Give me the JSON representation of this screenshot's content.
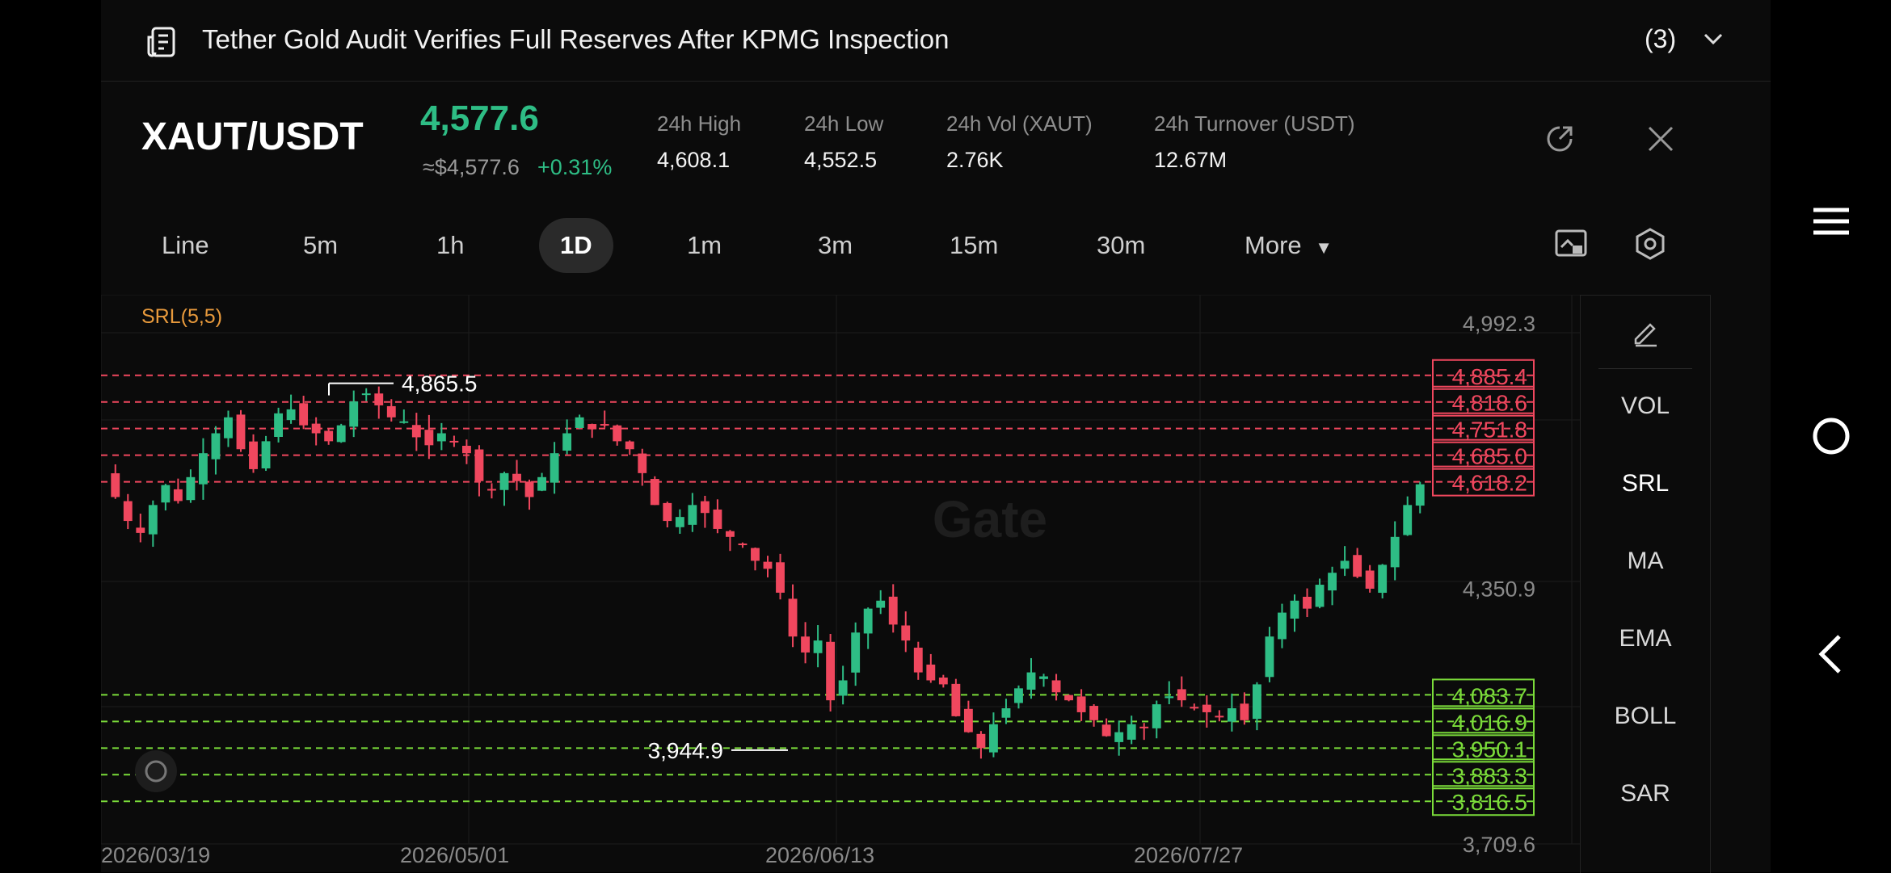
{
  "news": {
    "title": "Tether Gold Audit Verifies Full Reserves After KPMG Inspection",
    "count": "(3)"
  },
  "header": {
    "pair": "XAUT/USDT",
    "price": "4,577.6",
    "approx": "≈$4,577.6",
    "change": "+0.31%",
    "price_color": "#2ebd85",
    "stats": [
      {
        "label": "24h   High",
        "value": "4,608.1"
      },
      {
        "label": "24h   Low",
        "value": "4,552.5"
      },
      {
        "label": "24h   Vol (XAUT)",
        "value": "2.76K"
      },
      {
        "label": "24h   Turnover (USDT)",
        "value": "12.67M"
      }
    ]
  },
  "tabs": [
    "Line",
    "5m",
    "1h",
    "1D",
    "1m",
    "3m",
    "15m",
    "30m",
    "More"
  ],
  "active_tab": "1D",
  "sidebar": {
    "items": [
      "VOL",
      "SRL",
      "MA",
      "EMA",
      "BOLL",
      "SAR"
    ],
    "active": "SRL"
  },
  "chart_data": {
    "type": "candlestick",
    "indicator": "SRL(5,5)",
    "watermark": "Gate",
    "y_ticks": [
      "4,992.3",
      "4,350.9",
      "3,709.6"
    ],
    "ylim": [
      3709.6,
      4992.3
    ],
    "x_ticks": [
      "2026/03/19",
      "2026/05/01",
      "2026/06/13",
      "2026/07/27"
    ],
    "resistance": [
      "4,885.4",
      "4,818.6",
      "4,751.8",
      "4,685.0",
      "4,618.2"
    ],
    "support": [
      "4,083.7",
      "4,016.9",
      "3,950.1",
      "3,883.3",
      "3,816.5"
    ],
    "resistance_values": [
      4885.4,
      4818.6,
      4751.8,
      4685.0,
      4618.2
    ],
    "support_values": [
      4083.7,
      4016.9,
      3950.1,
      3883.3,
      3816.5
    ],
    "high_label": "4,865.5",
    "low_label": "3,944.9",
    "high_value": 4865.5,
    "low_value": 3944.9,
    "up_color": "#2ebd85",
    "down_color": "#f0475e",
    "close_path": [
      4580,
      4520,
      4490,
      4560,
      4610,
      4570,
      4630,
      4690,
      4740,
      4780,
      4700,
      4650,
      4720,
      4790,
      4800,
      4760,
      4740,
      4720,
      4760,
      4820,
      4840,
      4810,
      4780,
      4770,
      4730,
      4710,
      4740,
      4720,
      4690,
      4620,
      4600,
      4640,
      4620,
      4580,
      4630,
      4690,
      4740,
      4780,
      4750,
      4760,
      4720,
      4700,
      4640,
      4560,
      4520,
      4530,
      4560,
      4540,
      4500,
      4480,
      4460,
      4420,
      4400,
      4340,
      4230,
      4190,
      4220,
      4070,
      4120,
      4240,
      4300,
      4320,
      4260,
      4220,
      4140,
      4120,
      4110,
      4030,
      3990,
      3950,
      4010,
      4050,
      4100,
      4140,
      4130,
      4090,
      4070,
      4040,
      4020,
      3980,
      3990,
      4010,
      4000,
      4060,
      4080,
      4070,
      4050,
      4040,
      4030,
      4050,
      4020,
      4110,
      4230,
      4290,
      4320,
      4300,
      4360,
      4390,
      4420,
      4380,
      4350,
      4410,
      4480,
      4560,
      4612
    ]
  }
}
